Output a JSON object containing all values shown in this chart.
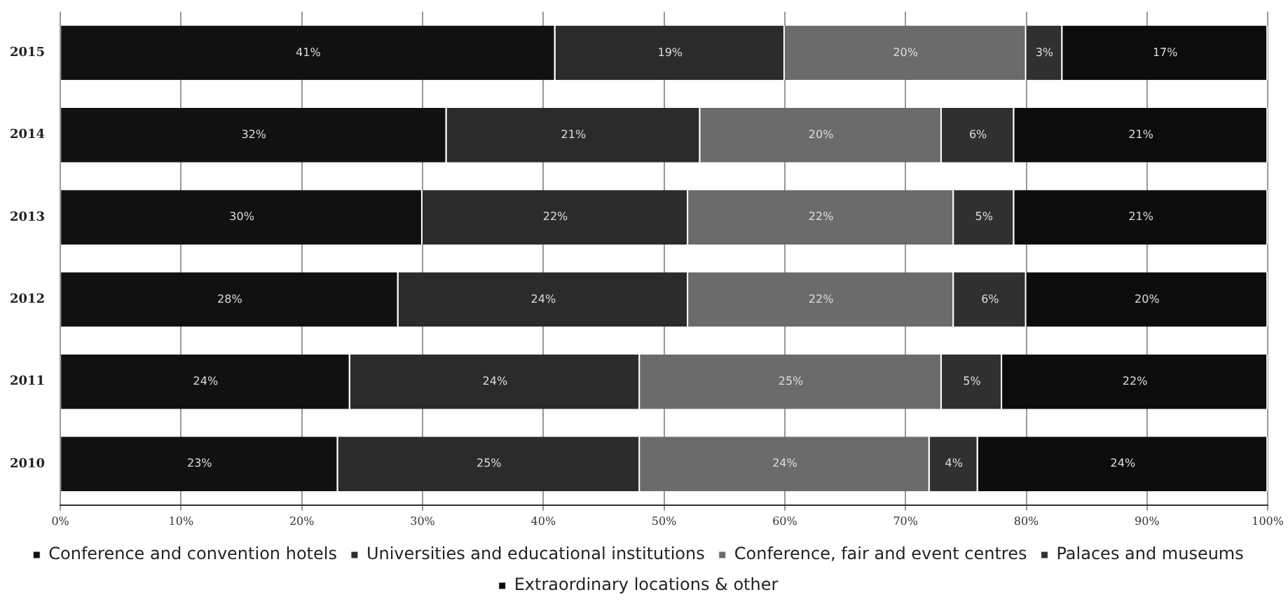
{
  "chart_data": {
    "type": "bar",
    "orientation": "horizontal",
    "stacked": true,
    "categories": [
      "2015",
      "2014",
      "2013",
      "2012",
      "2011",
      "2010"
    ],
    "series": [
      {
        "name": "Conference and convention hotels",
        "color": "#111111",
        "values": [
          41,
          32,
          30,
          28,
          24,
          23
        ]
      },
      {
        "name": "Universities and educational institutions",
        "color": "#2b2b2b",
        "values": [
          19,
          21,
          22,
          24,
          24,
          25
        ]
      },
      {
        "name": "Conference, fair and event centres",
        "color": "#6b6b6b",
        "values": [
          20,
          20,
          22,
          22,
          25,
          24
        ]
      },
      {
        "name": "Palaces and museums",
        "color": "#303030",
        "values": [
          3,
          6,
          5,
          6,
          5,
          4
        ]
      },
      {
        "name": "Extraordinary locations & other",
        "color": "#0c0c0c",
        "values": [
          17,
          21,
          21,
          20,
          22,
          24
        ]
      }
    ],
    "xlim": [
      0,
      100
    ],
    "xticks": [
      {
        "value": 0,
        "label": "0%"
      },
      {
        "value": 10,
        "label": "10%"
      },
      {
        "value": 20,
        "label": "20%"
      },
      {
        "value": 30,
        "label": "30%"
      },
      {
        "value": 40,
        "label": "40%"
      },
      {
        "value": 50,
        "label": "50%"
      },
      {
        "value": 60,
        "label": "60%"
      },
      {
        "value": 70,
        "label": "70%"
      },
      {
        "value": 80,
        "label": "80%"
      },
      {
        "value": 90,
        "label": "90%"
      },
      {
        "value": 100,
        "label": "100%"
      }
    ],
    "value_labels": [
      [
        "41%",
        "32%",
        "30%",
        "28%",
        "24%",
        "23%"
      ],
      [
        "19%",
        "21%",
        "22%",
        "24%",
        "24%",
        "25%"
      ],
      [
        "20%",
        "20%",
        "22%",
        "22%",
        "25%",
        "24%"
      ],
      [
        "3%",
        "6%",
        "5%",
        "6%",
        "5%",
        "4%"
      ],
      [
        "17%",
        "21%",
        "21%",
        "20%",
        "22%",
        "24%"
      ]
    ],
    "grid": "x",
    "legend": "bottom"
  }
}
